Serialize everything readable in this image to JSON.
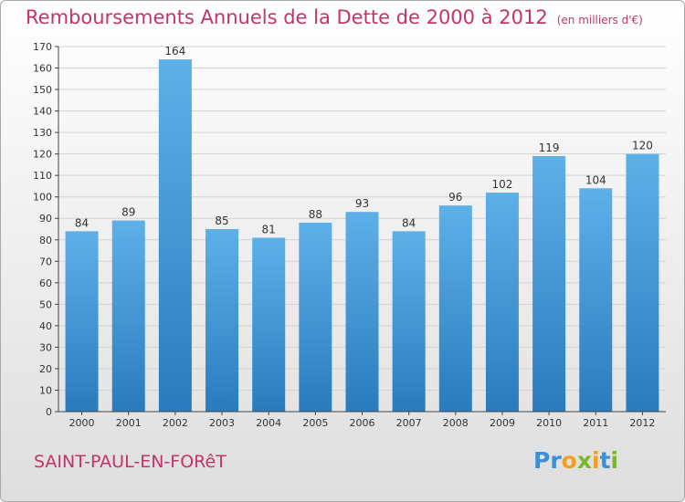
{
  "header": {
    "title": "Remboursements Annuels de la Dette de 2000 à 2012",
    "unit": "(en milliers d'€)"
  },
  "footer": {
    "commune": "SAINT-PAUL-EN-FORêT",
    "logo": [
      "P",
      "r",
      "o",
      "x",
      "i",
      "t",
      "i"
    ]
  },
  "colors": {
    "title": "#c2346a",
    "bar_top": "#5eb0e9",
    "bar_bottom": "#2a7bbd",
    "logo": [
      "#3a8fd8",
      "#3a8fd8",
      "#f0a020",
      "#78b82a",
      "#f0a020",
      "#3a8fd8",
      "#78b82a"
    ]
  },
  "chart_data": {
    "type": "bar",
    "categories": [
      "2000",
      "2001",
      "2002",
      "2003",
      "2004",
      "2005",
      "2006",
      "2007",
      "2008",
      "2009",
      "2010",
      "2011",
      "2012"
    ],
    "values": [
      84,
      89,
      164,
      85,
      81,
      88,
      93,
      84,
      96,
      102,
      119,
      104,
      120
    ],
    "ylim": [
      0,
      170
    ],
    "yticks": [
      0,
      10,
      20,
      30,
      40,
      50,
      60,
      70,
      80,
      90,
      100,
      110,
      120,
      130,
      140,
      150,
      160,
      170
    ],
    "grid": true,
    "data_labels": true
  }
}
